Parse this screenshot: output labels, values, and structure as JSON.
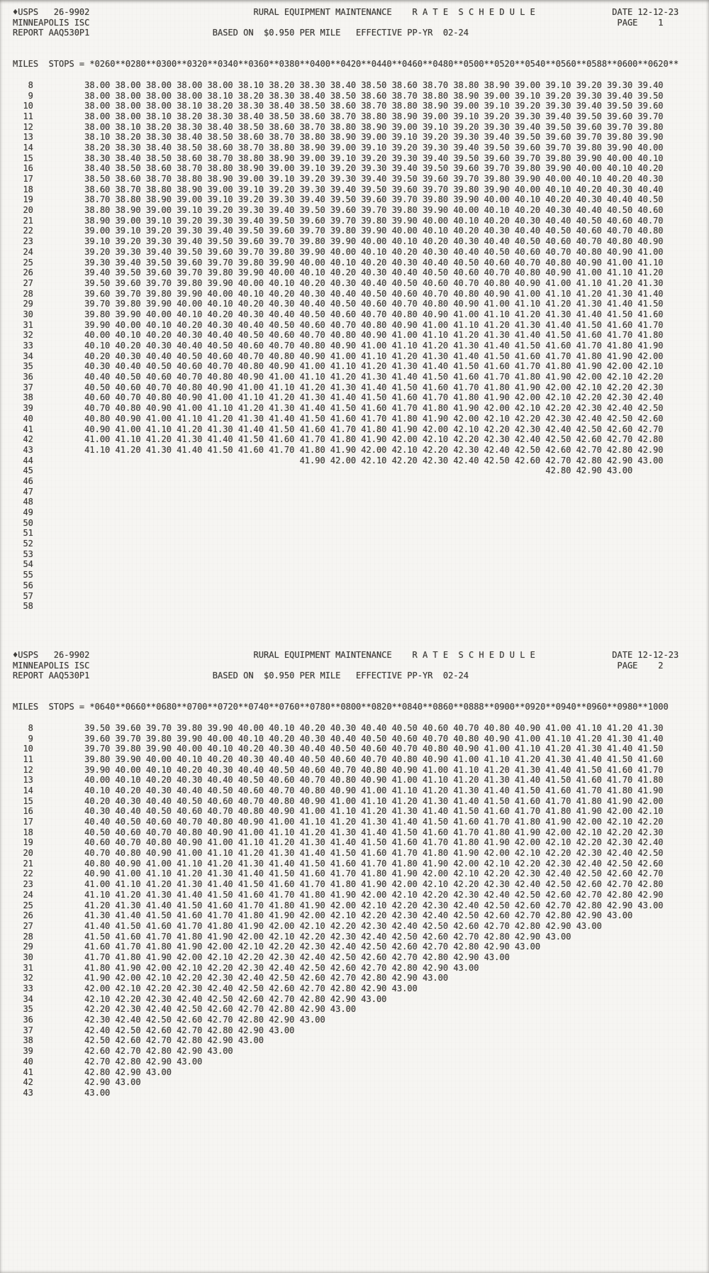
{
  "document": {
    "bg_color": "#f6f5f2",
    "text_color": "#3d3b38",
    "pages": [
      {
        "header": {
          "org": "♦USPS   26-9902",
          "office": "MINNEAPOLIS ISC",
          "report": "REPORT AAQ530P1",
          "title": "RURAL EQUIPMENT MAINTENANCE",
          "schedule": "R A T E  S C H E D U L E",
          "date": "DATE 12-12-23",
          "page": "PAGE    1",
          "based_on": "BASED ON  $0.950 PER MILE   EFFECTIVE PP-YR  02-24"
        },
        "stops_prefix": "MILES  STOPS = ",
        "stops_header": "*0260**0280**0300**0320**0340**0360**0380**0400**0420**0440**0460**0480**0500**0520**0540**0560**0588**0600**0620**",
        "rows": [
          {
            "miles": 8,
            "indent": 0,
            "values": "38.00 38.00 38.00 38.00 38.00 38.10 38.20 38.30 38.40 38.50 38.60 38.70 38.80 38.90 39.00 39.10 39.20 39.30 39.40"
          },
          {
            "miles": 9,
            "indent": 0,
            "values": "38.00 38.00 38.00 38.00 38.10 38.20 38.30 38.40 38.50 38.60 38.70 38.80 38.90 39.00 39.10 39.20 39.30 39.40 39.50"
          },
          {
            "miles": 10,
            "indent": 0,
            "values": "38.00 38.00 38.00 38.10 38.20 38.30 38.40 38.50 38.60 38.70 38.80 38.90 39.00 39.10 39.20 39.30 39.40 39.50 39.60"
          },
          {
            "miles": 11,
            "indent": 0,
            "values": "38.00 38.00 38.10 38.20 38.30 38.40 38.50 38.60 38.70 38.80 38.90 39.00 39.10 39.20 39.30 39.40 39.50 39.60 39.70"
          },
          {
            "miles": 12,
            "indent": 0,
            "values": "38.00 38.10 38.20 38.30 38.40 38.50 38.60 38.70 38.80 38.90 39.00 39.10 39.20 39.30 39.40 39.50 39.60 39.70 39.80"
          },
          {
            "miles": 13,
            "indent": 0,
            "values": "38.10 38.20 38.30 38.40 38.50 38.60 38.70 38.80 38.90 39.00 39.10 39.20 39.30 39.40 39.50 39.60 39.70 39.80 39.90"
          },
          {
            "miles": 14,
            "indent": 0,
            "values": "38.20 38.30 38.40 38.50 38.60 38.70 38.80 38.90 39.00 39.10 39.20 39.30 39.40 39.50 39.60 39.70 39.80 39.90 40.00"
          },
          {
            "miles": 15,
            "indent": 0,
            "values": "38.30 38.40 38.50 38.60 38.70 38.80 38.90 39.00 39.10 39.20 39.30 39.40 39.50 39.60 39.70 39.80 39.90 40.00 40.10"
          },
          {
            "miles": 16,
            "indent": 0,
            "values": "38.40 38.50 38.60 38.70 38.80 38.90 39.00 39.10 39.20 39.30 39.40 39.50 39.60 39.70 39.80 39.90 40.00 40.10 40.20"
          },
          {
            "miles": 17,
            "indent": 0,
            "values": "38.50 38.60 38.70 38.80 38.90 39.00 39.10 39.20 39.30 39.40 39.50 39.60 39.70 39.80 39.90 40.00 40.10 40.20 40.30"
          },
          {
            "miles": 18,
            "indent": 0,
            "values": "38.60 38.70 38.80 38.90 39.00 39.10 39.20 39.30 39.40 39.50 39.60 39.70 39.80 39.90 40.00 40.10 40.20 40.30 40.40"
          },
          {
            "miles": 19,
            "indent": 0,
            "values": "38.70 38.80 38.90 39.00 39.10 39.20 39.30 39.40 39.50 39.60 39.70 39.80 39.90 40.00 40.10 40.20 40.30 40.40 40.50"
          },
          {
            "miles": 20,
            "indent": 0,
            "values": "38.80 38.90 39.00 39.10 39.20 39.30 39.40 39.50 39.60 39.70 39.80 39.90 40.00 40.10 40.20 40.30 40.40 40.50 40.60"
          },
          {
            "miles": 21,
            "indent": 0,
            "values": "38.90 39.00 39.10 39.20 39.30 39.40 39.50 39.60 39.70 39.80 39.90 40.00 40.10 40.20 40.30 40.40 40.50 40.60 40.70"
          },
          {
            "miles": 22,
            "indent": 0,
            "values": "39.00 39.10 39.20 39.30 39.40 39.50 39.60 39.70 39.80 39.90 40.00 40.10 40.20 40.30 40.40 40.50 40.60 40.70 40.80"
          },
          {
            "miles": 23,
            "indent": 0,
            "values": "39.10 39.20 39.30 39.40 39.50 39.60 39.70 39.80 39.90 40.00 40.10 40.20 40.30 40.40 40.50 40.60 40.70 40.80 40.90"
          },
          {
            "miles": 24,
            "indent": 0,
            "values": "39.20 39.30 39.40 39.50 39.60 39.70 39.80 39.90 40.00 40.10 40.20 40.30 40.40 40.50 40.60 40.70 40.80 40.90 41.00"
          },
          {
            "miles": 25,
            "indent": 0,
            "values": "39.30 39.40 39.50 39.60 39.70 39.80 39.90 40.00 40.10 40.20 40.30 40.40 40.50 40.60 40.70 40.80 40.90 41.00 41.10"
          },
          {
            "miles": 26,
            "indent": 0,
            "values": "39.40 39.50 39.60 39.70 39.80 39.90 40.00 40.10 40.20 40.30 40.40 40.50 40.60 40.70 40.80 40.90 41.00 41.10 41.20"
          },
          {
            "miles": 27,
            "indent": 0,
            "values": "39.50 39.60 39.70 39.80 39.90 40.00 40.10 40.20 40.30 40.40 40.50 40.60 40.70 40.80 40.90 41.00 41.10 41.20 41.30"
          },
          {
            "miles": 28,
            "indent": 0,
            "values": "39.60 39.70 39.80 39.90 40.00 40.10 40.20 40.30 40.40 40.50 40.60 40.70 40.80 40.90 41.00 41.10 41.20 41.30 41.40"
          },
          {
            "miles": 29,
            "indent": 0,
            "values": "39.70 39.80 39.90 40.00 40.10 40.20 40.30 40.40 40.50 40.60 40.70 40.80 40.90 41.00 41.10 41.20 41.30 41.40 41.50"
          },
          {
            "miles": 30,
            "indent": 0,
            "values": "39.80 39.90 40.00 40.10 40.20 40.30 40.40 40.50 40.60 40.70 40.80 40.90 41.00 41.10 41.20 41.30 41.40 41.50 41.60"
          },
          {
            "miles": 31,
            "indent": 0,
            "values": "39.90 40.00 40.10 40.20 40.30 40.40 40.50 40.60 40.70 40.80 40.90 41.00 41.10 41.20 41.30 41.40 41.50 41.60 41.70"
          },
          {
            "miles": 32,
            "indent": 0,
            "values": "40.00 40.10 40.20 40.30 40.40 40.50 40.60 40.70 40.80 40.90 41.00 41.10 41.20 41.30 41.40 41.50 41.60 41.70 41.80"
          },
          {
            "miles": 33,
            "indent": 0,
            "values": "40.10 40.20 40.30 40.40 40.50 40.60 40.70 40.80 40.90 41.00 41.10 41.20 41.30 41.40 41.50 41.60 41.70 41.80 41.90"
          },
          {
            "miles": 34,
            "indent": 0,
            "values": "40.20 40.30 40.40 40.50 40.60 40.70 40.80 40.90 41.00 41.10 41.20 41.30 41.40 41.50 41.60 41.70 41.80 41.90 42.00"
          },
          {
            "miles": 35,
            "indent": 0,
            "values": "40.30 40.40 40.50 40.60 40.70 40.80 40.90 41.00 41.10 41.20 41.30 41.40 41.50 41.60 41.70 41.80 41.90 42.00 42.10"
          },
          {
            "miles": 36,
            "indent": 0,
            "values": "40.40 40.50 40.60 40.70 40.80 40.90 41.00 41.10 41.20 41.30 41.40 41.50 41.60 41.70 41.80 41.90 42.00 42.10 42.20"
          },
          {
            "miles": 37,
            "indent": 0,
            "values": "40.50 40.60 40.70 40.80 40.90 41.00 41.10 41.20 41.30 41.40 41.50 41.60 41.70 41.80 41.90 42.00 42.10 42.20 42.30"
          },
          {
            "miles": 38,
            "indent": 0,
            "values": "40.60 40.70 40.80 40.90 41.00 41.10 41.20 41.30 41.40 41.50 41.60 41.70 41.80 41.90 42.00 42.10 42.20 42.30 42.40"
          },
          {
            "miles": 39,
            "indent": 0,
            "values": "40.70 40.80 40.90 41.00 41.10 41.20 41.30 41.40 41.50 41.60 41.70 41.80 41.90 42.00 42.10 42.20 42.30 42.40 42.50"
          },
          {
            "miles": 40,
            "indent": 0,
            "values": "40.80 40.90 41.00 41.10 41.20 41.30 41.40 41.50 41.60 41.70 41.80 41.90 42.00 42.10 42.20 42.30 42.40 42.50 42.60"
          },
          {
            "miles": 41,
            "indent": 0,
            "values": "40.90 41.00 41.10 41.20 41.30 41.40 41.50 41.60 41.70 41.80 41.90 42.00 42.10 42.20 42.30 42.40 42.50 42.60 42.70"
          },
          {
            "miles": 42,
            "indent": 0,
            "values": "41.00 41.10 41.20 41.30 41.40 41.50 41.60 41.70 41.80 41.90 42.00 42.10 42.20 42.30 42.40 42.50 42.60 42.70 42.80"
          },
          {
            "miles": 43,
            "indent": 0,
            "values": "41.10 41.20 41.30 41.40 41.50 41.60 41.70 41.80 41.90 42.00 42.10 42.20 42.30 42.40 42.50 42.60 42.70 42.80 42.90"
          },
          {
            "miles": 44,
            "indent": 7,
            "values": "41.90 42.00 42.10 42.20 42.30 42.40 42.50 42.60 42.70 42.80 42.90 43.00"
          },
          {
            "miles": 45,
            "indent": 15,
            "values": "42.80 42.90 43.00"
          },
          {
            "miles": 46,
            "indent": 0,
            "values": ""
          },
          {
            "miles": 47,
            "indent": 0,
            "values": ""
          },
          {
            "miles": 48,
            "indent": 0,
            "values": ""
          },
          {
            "miles": 49,
            "indent": 0,
            "values": ""
          },
          {
            "miles": 50,
            "indent": 0,
            "values": ""
          },
          {
            "miles": 51,
            "indent": 0,
            "values": ""
          },
          {
            "miles": 52,
            "indent": 0,
            "values": ""
          },
          {
            "miles": 53,
            "indent": 0,
            "values": ""
          },
          {
            "miles": 54,
            "indent": 0,
            "values": ""
          },
          {
            "miles": 55,
            "indent": 0,
            "values": ""
          },
          {
            "miles": 56,
            "indent": 0,
            "values": ""
          },
          {
            "miles": 57,
            "indent": 0,
            "values": ""
          },
          {
            "miles": 58,
            "indent": 0,
            "values": ""
          }
        ]
      },
      {
        "header": {
          "org": "♦USPS   26-9902",
          "office": "MINNEAPOLIS ISC",
          "report": "REPORT AAQ530P1",
          "title": "RURAL EQUIPMENT MAINTENANCE",
          "schedule": "R A T E  S C H E D U L E",
          "date": "DATE 12-12-23",
          "page": "PAGE    2",
          "based_on": "BASED ON  $0.950 PER MILE   EFFECTIVE PP-YR  02-24"
        },
        "stops_prefix": "MILES  STOPS = ",
        "stops_header": "*0640**0660**0680**0700**0720**0740**0760**0780**0800**0820**0840**0860**0888**0900**0920**0940**0960**0980**1000",
        "rows": [
          {
            "miles": 8,
            "indent": 0,
            "values": "39.50 39.60 39.70 39.80 39.90 40.00 40.10 40.20 40.30 40.40 40.50 40.60 40.70 40.80 40.90 41.00 41.10 41.20 41.30"
          },
          {
            "miles": 9,
            "indent": 0,
            "values": "39.60 39.70 39.80 39.90 40.00 40.10 40.20 40.30 40.40 40.50 40.60 40.70 40.80 40.90 41.00 41.10 41.20 41.30 41.40"
          },
          {
            "miles": 10,
            "indent": 0,
            "values": "39.70 39.80 39.90 40.00 40.10 40.20 40.30 40.40 40.50 40.60 40.70 40.80 40.90 41.00 41.10 41.20 41.30 41.40 41.50"
          },
          {
            "miles": 11,
            "indent": 0,
            "values": "39.80 39.90 40.00 40.10 40.20 40.30 40.40 40.50 40.60 40.70 40.80 40.90 41.00 41.10 41.20 41.30 41.40 41.50 41.60"
          },
          {
            "miles": 12,
            "indent": 0,
            "values": "39.90 40.00 40.10 40.20 40.30 40.40 40.50 40.60 40.70 40.80 40.90 41.00 41.10 41.20 41.30 41.40 41.50 41.60 41.70"
          },
          {
            "miles": 13,
            "indent": 0,
            "values": "40.00 40.10 40.20 40.30 40.40 40.50 40.60 40.70 40.80 40.90 41.00 41.10 41.20 41.30 41.40 41.50 41.60 41.70 41.80"
          },
          {
            "miles": 14,
            "indent": 0,
            "values": "40.10 40.20 40.30 40.40 40.50 40.60 40.70 40.80 40.90 41.00 41.10 41.20 41.30 41.40 41.50 41.60 41.70 41.80 41.90"
          },
          {
            "miles": 15,
            "indent": 0,
            "values": "40.20 40.30 40.40 40.50 40.60 40.70 40.80 40.90 41.00 41.10 41.20 41.30 41.40 41.50 41.60 41.70 41.80 41.90 42.00"
          },
          {
            "miles": 16,
            "indent": 0,
            "values": "40.30 40.40 40.50 40.60 40.70 40.80 40.90 41.00 41.10 41.20 41.30 41.40 41.50 41.60 41.70 41.80 41.90 42.00 42.10"
          },
          {
            "miles": 17,
            "indent": 0,
            "values": "40.40 40.50 40.60 40.70 40.80 40.90 41.00 41.10 41.20 41.30 41.40 41.50 41.60 41.70 41.80 41.90 42.00 42.10 42.20"
          },
          {
            "miles": 18,
            "indent": 0,
            "values": "40.50 40.60 40.70 40.80 40.90 41.00 41.10 41.20 41.30 41.40 41.50 41.60 41.70 41.80 41.90 42.00 42.10 42.20 42.30"
          },
          {
            "miles": 19,
            "indent": 0,
            "values": "40.60 40.70 40.80 40.90 41.00 41.10 41.20 41.30 41.40 41.50 41.60 41.70 41.80 41.90 42.00 42.10 42.20 42.30 42.40"
          },
          {
            "miles": 20,
            "indent": 0,
            "values": "40.70 40.80 40.90 41.00 41.10 41.20 41.30 41.40 41.50 41.60 41.70 41.80 41.90 42.00 42.10 42.20 42.30 42.40 42.50"
          },
          {
            "miles": 21,
            "indent": 0,
            "values": "40.80 40.90 41.00 41.10 41.20 41.30 41.40 41.50 41.60 41.70 41.80 41.90 42.00 42.10 42.20 42.30 42.40 42.50 42.60"
          },
          {
            "miles": 22,
            "indent": 0,
            "values": "40.90 41.00 41.10 41.20 41.30 41.40 41.50 41.60 41.70 41.80 41.90 42.00 42.10 42.20 42.30 42.40 42.50 42.60 42.70"
          },
          {
            "miles": 23,
            "indent": 0,
            "values": "41.00 41.10 41.20 41.30 41.40 41.50 41.60 41.70 41.80 41.90 42.00 42.10 42.20 42.30 42.40 42.50 42.60 42.70 42.80"
          },
          {
            "miles": 24,
            "indent": 0,
            "values": "41.10 41.20 41.30 41.40 41.50 41.60 41.70 41.80 41.90 42.00 42.10 42.20 42.30 42.40 42.50 42.60 42.70 42.80 42.90"
          },
          {
            "miles": 25,
            "indent": 0,
            "values": "41.20 41.30 41.40 41.50 41.60 41.70 41.80 41.90 42.00 42.10 42.20 42.30 42.40 42.50 42.60 42.70 42.80 42.90 43.00"
          },
          {
            "miles": 26,
            "indent": 0,
            "values": "41.30 41.40 41.50 41.60 41.70 41.80 41.90 42.00 42.10 42.20 42.30 42.40 42.50 42.60 42.70 42.80 42.90 43.00"
          },
          {
            "miles": 27,
            "indent": 0,
            "values": "41.40 41.50 41.60 41.70 41.80 41.90 42.00 42.10 42.20 42.30 42.40 42.50 42.60 42.70 42.80 42.90 43.00"
          },
          {
            "miles": 28,
            "indent": 0,
            "values": "41.50 41.60 41.70 41.80 41.90 42.00 42.10 42.20 42.30 42.40 42.50 42.60 42.70 42.80 42.90 43.00"
          },
          {
            "miles": 29,
            "indent": 0,
            "values": "41.60 41.70 41.80 41.90 42.00 42.10 42.20 42.30 42.40 42.50 42.60 42.70 42.80 42.90 43.00"
          },
          {
            "miles": 30,
            "indent": 0,
            "values": "41.70 41.80 41.90 42.00 42.10 42.20 42.30 42.40 42.50 42.60 42.70 42.80 42.90 43.00"
          },
          {
            "miles": 31,
            "indent": 0,
            "values": "41.80 41.90 42.00 42.10 42.20 42.30 42.40 42.50 42.60 42.70 42.80 42.90 43.00"
          },
          {
            "miles": 32,
            "indent": 0,
            "values": "41.90 42.00 42.10 42.20 42.30 42.40 42.50 42.60 42.70 42.80 42.90 43.00"
          },
          {
            "miles": 33,
            "indent": 0,
            "values": "42.00 42.10 42.20 42.30 42.40 42.50 42.60 42.70 42.80 42.90 43.00"
          },
          {
            "miles": 34,
            "indent": 0,
            "values": "42.10 42.20 42.30 42.40 42.50 42.60 42.70 42.80 42.90 43.00"
          },
          {
            "miles": 35,
            "indent": 0,
            "values": "42.20 42.30 42.40 42.50 42.60 42.70 42.80 42.90 43.00"
          },
          {
            "miles": 36,
            "indent": 0,
            "values": "42.30 42.40 42.50 42.60 42.70 42.80 42.90 43.00"
          },
          {
            "miles": 37,
            "indent": 0,
            "values": "42.40 42.50 42.60 42.70 42.80 42.90 43.00"
          },
          {
            "miles": 38,
            "indent": 0,
            "values": "42.50 42.60 42.70 42.80 42.90 43.00"
          },
          {
            "miles": 39,
            "indent": 0,
            "values": "42.60 42.70 42.80 42.90 43.00"
          },
          {
            "miles": 40,
            "indent": 0,
            "values": "42.70 42.80 42.90 43.00"
          },
          {
            "miles": 41,
            "indent": 0,
            "values": "42.80 42.90 43.00"
          },
          {
            "miles": 42,
            "indent": 0,
            "values": "42.90 43.00"
          },
          {
            "miles": 43,
            "indent": 0,
            "values": "43.00"
          }
        ]
      }
    ]
  }
}
